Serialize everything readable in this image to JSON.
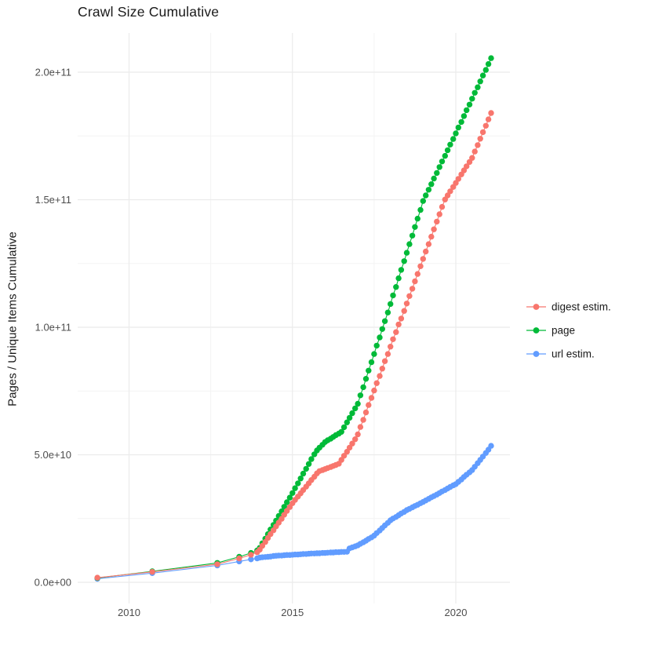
{
  "page": {
    "background": "#ffffff"
  },
  "chart_data": {
    "type": "scatter",
    "title": "Crawl Size Cumulative",
    "xlabel": "",
    "ylabel": "Pages / Unique Items Cumulative",
    "grid": "major+minor",
    "legend_position": "right",
    "x_ticks": [
      2010,
      2015,
      2020
    ],
    "x_tick_labels": [
      "2010",
      "2015",
      "2020"
    ],
    "x_minor_ticks": [
      2012.5,
      2017.5
    ],
    "y_ticks_e9": [
      0,
      50,
      100,
      150,
      200
    ],
    "y_tick_labels": [
      "0.0e+00",
      "5.0e+10",
      "1.0e+11",
      "1.5e+11",
      "2.0e+11"
    ],
    "y_minor_ticks_e9": [
      25,
      75,
      125,
      175
    ],
    "xlim": [
      2008.4,
      2021.7
    ],
    "ylim_e9": [
      -8.5,
      215
    ],
    "value_unit": 1000000000,
    "x": [
      2009.03,
      2010.71,
      2012.7,
      2013.37,
      2013.73,
      2013.92,
      2014,
      2014.08,
      2014.17,
      2014.25,
      2014.33,
      2014.42,
      2014.5,
      2014.58,
      2014.67,
      2014.75,
      2014.83,
      2014.92,
      2015,
      2015.08,
      2015.17,
      2015.25,
      2015.33,
      2015.42,
      2015.5,
      2015.58,
      2015.67,
      2015.75,
      2015.83,
      2015.92,
      2016,
      2016.08,
      2016.17,
      2016.25,
      2016.33,
      2016.42,
      2016.5,
      2016.58,
      2016.67,
      2016.75,
      2016.83,
      2016.92,
      2017,
      2017.08,
      2017.17,
      2017.25,
      2017.33,
      2017.42,
      2017.5,
      2017.58,
      2017.67,
      2017.75,
      2017.83,
      2017.92,
      2018,
      2018.08,
      2018.17,
      2018.25,
      2018.33,
      2018.42,
      2018.5,
      2018.58,
      2018.67,
      2018.75,
      2018.83,
      2018.92,
      2019,
      2019.08,
      2019.17,
      2019.25,
      2019.33,
      2019.42,
      2019.5,
      2019.58,
      2019.67,
      2019.75,
      2019.83,
      2019.92,
      2020,
      2020.08,
      2020.17,
      2020.25,
      2020.33,
      2020.42,
      2020.5,
      2020.58,
      2020.67,
      2020.75,
      2020.83,
      2020.92,
      2021,
      2021.08
    ],
    "series": [
      {
        "name": "digest estim.",
        "color": "#F8766D",
        "values_e9": [
          1.8,
          4.1,
          7.1,
          9.4,
          10.8,
          11.8,
          12.8,
          14.3,
          15.8,
          17.4,
          18.9,
          20.4,
          21.9,
          23.4,
          24.9,
          26.5,
          28,
          29.5,
          31,
          32.3,
          33.6,
          34.9,
          36.2,
          37.5,
          38.8,
          40.1,
          41.4,
          42.7,
          43.6,
          44,
          44.4,
          44.8,
          45.2,
          45.6,
          46,
          46.5,
          48,
          49.6,
          51.2,
          52.8,
          54.4,
          56.1,
          58,
          60.9,
          63.7,
          66.6,
          69.5,
          72.3,
          75.2,
          78.1,
          80.9,
          83.8,
          86.7,
          89.5,
          92.4,
          95.3,
          98.1,
          101.1,
          103.4,
          106.4,
          109.3,
          112.2,
          115.1,
          118,
          120.9,
          123.9,
          126.8,
          129.7,
          132.6,
          135.5,
          138.4,
          141.4,
          144.3,
          147.2,
          150.1,
          151.7,
          153.3,
          155,
          156.6,
          158.2,
          159.9,
          161.5,
          163.1,
          164.8,
          166.4,
          168.9,
          171.4,
          173.9,
          176.5,
          179,
          181.5,
          184
        ]
      },
      {
        "name": "page",
        "color": "#00BA38",
        "values_e9": [
          1.7,
          4.3,
          7.6,
          10,
          11.5,
          12.5,
          13.5,
          15.3,
          17.1,
          18.9,
          20.7,
          22.5,
          24.2,
          26,
          27.8,
          29.6,
          31.4,
          33.2,
          35,
          36.9,
          38.8,
          40.7,
          42.6,
          44.5,
          46.4,
          48.3,
          50.2,
          51.7,
          52.8,
          53.9,
          55,
          55.7,
          56.3,
          57,
          57.7,
          58.3,
          59,
          60.8,
          62.7,
          64.5,
          66.3,
          68.2,
          70,
          73.3,
          76.5,
          79.8,
          83,
          86.3,
          89.5,
          92.8,
          96,
          99.3,
          102.4,
          105.8,
          109.1,
          112.5,
          115.8,
          119.2,
          122.5,
          125.9,
          129.2,
          132.6,
          135.9,
          139.3,
          142.6,
          146,
          149.5,
          151.7,
          153.9,
          156.1,
          158.3,
          160.5,
          162.8,
          165,
          167.2,
          169.4,
          171.6,
          173.8,
          176,
          178.3,
          180.5,
          182.8,
          185.1,
          187.3,
          189.6,
          191.9,
          194.1,
          196.4,
          198.7,
          200.9,
          203.2,
          205.5
        ]
      },
      {
        "name": "url estim.",
        "color": "#619CFF",
        "values_e9": [
          1.4,
          3.6,
          6.6,
          8.2,
          9,
          9.4,
          9.7,
          9.8,
          9.9,
          10,
          10.1,
          10.3,
          10.4,
          10.5,
          10.5,
          10.6,
          10.7,
          10.7,
          10.8,
          10.9,
          10.9,
          11,
          11.1,
          11.1,
          11.2,
          11.3,
          11.3,
          11.4,
          11.4,
          11.5,
          11.5,
          11.6,
          11.7,
          11.7,
          11.8,
          11.8,
          11.9,
          11.9,
          12,
          13.3,
          13.7,
          14.1,
          14.5,
          15.1,
          15.7,
          16.3,
          17,
          17.6,
          18.3,
          19.3,
          20.3,
          21.3,
          22.3,
          23.3,
          24.3,
          25,
          25.6,
          26.3,
          27,
          27.6,
          28.3,
          28.8,
          29.4,
          29.9,
          30.4,
          31,
          31.5,
          32.1,
          32.7,
          33.3,
          33.8,
          34.4,
          35,
          35.6,
          36.2,
          36.8,
          37.4,
          38,
          38.5,
          39.4,
          40.3,
          41.3,
          42.2,
          43.1,
          44,
          45.3,
          46.7,
          48,
          49.3,
          50.7,
          52,
          53.5
        ]
      }
    ],
    "style": {
      "grid_major_color": "#EBEBEB",
      "grid_minor_color": "#F3F3F3",
      "tick_label_color": "#4d4d4d",
      "text_color": "#1a1a1a",
      "point_radius": 3.7
    }
  }
}
